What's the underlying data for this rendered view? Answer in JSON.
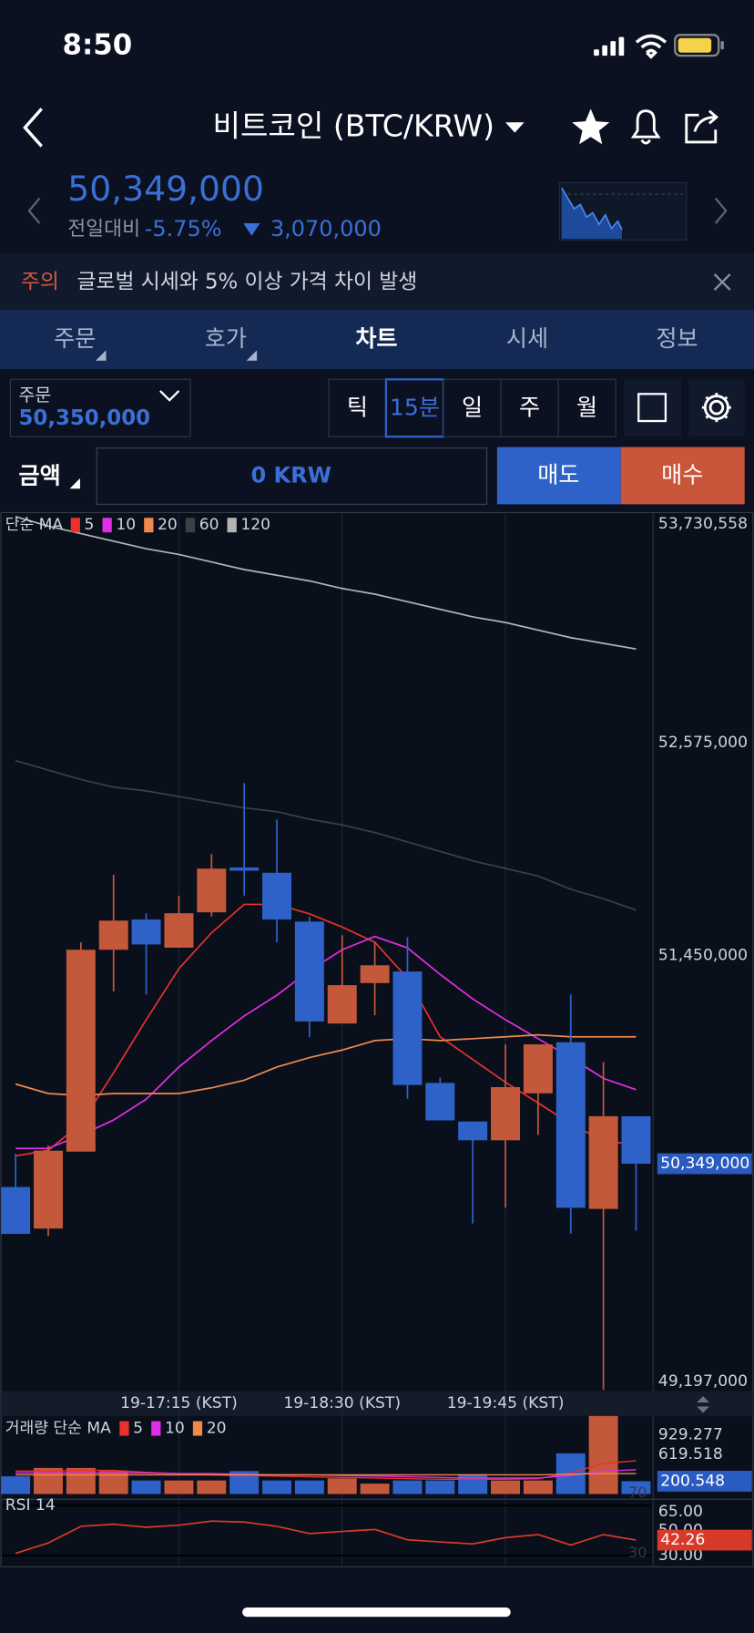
{
  "status_bar": {
    "time": "8:50"
  },
  "header": {
    "title": "비트코인 (BTC/KRW)"
  },
  "ticker": {
    "price": "50,349,000",
    "change_label": "전일대비",
    "change_rate": "-5.75%",
    "change_amount": "3,070,000"
  },
  "notice": {
    "tag": "주의",
    "text": "글로벌 시세와 5% 이상 가격 차이 발생"
  },
  "tabs": [
    "주문",
    "호가",
    "차트",
    "시세",
    "정보"
  ],
  "active_tab": 2,
  "order": {
    "label": "주문",
    "price": "50,350,000",
    "intervals": [
      "틱",
      "15분",
      "일",
      "주",
      "월"
    ],
    "selected_interval": 1,
    "amount_label": "금액",
    "amount": "0 KRW",
    "sell": "매도",
    "buy": "매수"
  },
  "chart_data": [
    {
      "type": "candlestick",
      "legend_title": "단순 MA",
      "categories": [
        null,
        null,
        null,
        null,
        null,
        "19-17:15 (KST)",
        null,
        null,
        null,
        null,
        "19-18:30 (KST)",
        null,
        null,
        null,
        null,
        "19-19:45 (KST)",
        null,
        null,
        null,
        null
      ],
      "open": [
        50226000,
        50006000,
        50413000,
        51480000,
        51640000,
        51491000,
        51678000,
        51915000,
        51887000,
        51629000,
        51090000,
        51304000,
        51365000,
        50776000,
        50572000,
        50473000,
        50721000,
        50991000,
        50110000,
        50600000
      ],
      "high": [
        50402000,
        50446000,
        51519000,
        51876000,
        51673000,
        51766000,
        51986000,
        52361000,
        52168000,
        51656000,
        51557000,
        51519000,
        51546000,
        50804000,
        50572000,
        50980000,
        50980000,
        51244000,
        50886000,
        50600000
      ],
      "low": [
        49978000,
        49967000,
        50413000,
        51260000,
        51244000,
        51491000,
        51656000,
        51766000,
        51519000,
        51018000,
        51090000,
        51134000,
        50693000,
        50578000,
        50033000,
        50116000,
        50501000,
        49978000,
        49153000,
        49995000
      ],
      "close": [
        49978000,
        50418000,
        51480000,
        51634000,
        51508000,
        51673000,
        51909000,
        51898000,
        51640000,
        51101000,
        51293000,
        51398000,
        50765000,
        50578000,
        50473000,
        50754000,
        50980000,
        50116000,
        50600000,
        50349000
      ],
      "last_label": "50,349,000",
      "up_color": "#c4583b",
      "down_color": "#2f62c8",
      "series": [
        {
          "name": "5",
          "color": "#e8322a",
          "values": [
            50390000,
            50420000,
            50560000,
            50830000,
            51110000,
            51380000,
            51570000,
            51720000,
            51720000,
            51670000,
            51600000,
            51520000,
            51330000,
            51020000,
            50900000,
            50780000,
            50670000,
            50560000,
            50470000,
            50450000
          ]
        },
        {
          "name": "10",
          "color": "#e22ee8",
          "values": [
            50430000,
            50430000,
            50500000,
            50580000,
            50690000,
            50860000,
            51000000,
            51130000,
            51240000,
            51370000,
            51480000,
            51550000,
            51490000,
            51350000,
            51220000,
            51110000,
            51010000,
            50910000,
            50800000,
            50740000
          ]
        },
        {
          "name": "20",
          "color": "#f08a4b",
          "values": [
            50770000,
            50720000,
            50710000,
            50720000,
            50720000,
            50720000,
            50750000,
            50790000,
            50860000,
            50910000,
            50950000,
            51000000,
            51010000,
            51000000,
            51010000,
            51020000,
            51030000,
            51020000,
            51020000,
            51020000
          ]
        },
        {
          "name": "60",
          "color": "#3c4045",
          "values": [
            52480000,
            52430000,
            52380000,
            52340000,
            52320000,
            52290000,
            52260000,
            52230000,
            52210000,
            52170000,
            52140000,
            52100000,
            52050000,
            52000000,
            51950000,
            51910000,
            51870000,
            51800000,
            51750000,
            51690000
          ]
        },
        {
          "name": "120",
          "color": "#b4b4b4",
          "values": [
            53770000,
            53720000,
            53680000,
            53640000,
            53600000,
            53570000,
            53530000,
            53490000,
            53460000,
            53430000,
            53390000,
            53360000,
            53320000,
            53280000,
            53240000,
            53210000,
            53170000,
            53130000,
            53100000,
            53070000
          ]
        }
      ],
      "ylim": [
        49153000,
        53785600
      ],
      "yticks": [
        {
          "value": 53730558,
          "label": "53,730,558"
        },
        {
          "value": 52575000,
          "label": "52,575,000"
        },
        {
          "value": 51450000,
          "label": "51,450,000"
        },
        {
          "value": 49197000,
          "label": "49,197,000"
        }
      ]
    },
    {
      "type": "bar",
      "legend_title": "거래량 단순 MA",
      "values": [
        277,
        408,
        408,
        359,
        212,
        212,
        212,
        359,
        212,
        212,
        245,
        163,
        212,
        212,
        310,
        212,
        212,
        636,
        1222,
        200.548
      ],
      "up_color": "#c4583b",
      "down_color": "#2f62c8",
      "series": [
        {
          "name": "5",
          "color": "#e8322a",
          "values": [
            360,
            360,
            370,
            370,
            340,
            320,
            300,
            290,
            280,
            270,
            260,
            250,
            240,
            230,
            230,
            230,
            240,
            330,
            480,
            520
          ]
        },
        {
          "name": "10",
          "color": "#e22ee8",
          "values": [
            330,
            330,
            330,
            330,
            330,
            320,
            320,
            310,
            300,
            300,
            290,
            280,
            270,
            260,
            250,
            250,
            250,
            290,
            360,
            380
          ]
        },
        {
          "name": "20",
          "color": "#f08a4b",
          "values": [
            300,
            300,
            300,
            300,
            300,
            300,
            300,
            300,
            300,
            300,
            300,
            300,
            300,
            300,
            300,
            300,
            300,
            310,
            320,
            320
          ]
        }
      ],
      "ylim": [
        0,
        1222
      ],
      "yticks": [
        929.277,
        619.518
      ]
    },
    {
      "type": "line",
      "title": "RSI 14",
      "color": "#d83a2a",
      "values": [
        31.7,
        40,
        53.3,
        55,
        52.5,
        54.2,
        57.5,
        56.7,
        53.3,
        47.5,
        49.2,
        50.8,
        42.5,
        40.8,
        39.2,
        44.2,
        46.7,
        38.3,
        46.7,
        42.26
      ],
      "ylim": [
        25,
        75
      ],
      "yticks": [
        {
          "value": 65,
          "label": "65.00"
        },
        {
          "value": 50,
          "label": "50.00"
        },
        {
          "value": 30,
          "label": "30.00"
        }
      ],
      "guides": [
        70,
        30
      ]
    }
  ]
}
